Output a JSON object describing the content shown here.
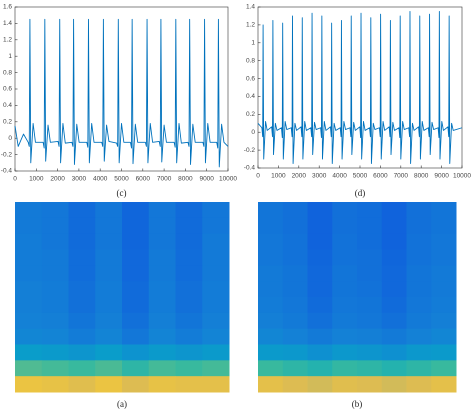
{
  "chart_data": [
    {
      "type": "line",
      "caption": "(c)",
      "color": "#0072bd",
      "xlim": [
        0,
        10000
      ],
      "ylim": [
        -0.4,
        1.6
      ],
      "xticks": [
        0,
        1000,
        2000,
        3000,
        4000,
        5000,
        6000,
        7000,
        8000,
        9000,
        10000
      ],
      "yticks": [
        -0.4,
        -0.2,
        0,
        0.2,
        0.4,
        0.6,
        0.8,
        1,
        1.2,
        1.4,
        1.6
      ],
      "x": [
        0,
        150,
        400,
        620,
        670,
        700,
        740,
        850,
        960,
        1320,
        1370,
        1400,
        1440,
        1550,
        1660,
        2020,
        2070,
        2100,
        2140,
        2250,
        2360,
        2670,
        2720,
        2750,
        2790,
        2900,
        3010,
        3370,
        3420,
        3450,
        3490,
        3600,
        3710,
        4070,
        4120,
        4150,
        4190,
        4300,
        4410,
        4770,
        4820,
        4850,
        4890,
        5000,
        5110,
        5420,
        5470,
        5500,
        5540,
        5650,
        5760,
        6120,
        6170,
        6200,
        6240,
        6350,
        6460,
        6770,
        6820,
        6850,
        6890,
        7000,
        7110,
        7470,
        7520,
        7550,
        7590,
        7700,
        7810,
        8120,
        8170,
        8200,
        8240,
        8350,
        8460,
        8820,
        8870,
        8900,
        8940,
        9050,
        9160,
        9470,
        9520,
        9550,
        9590,
        9700,
        9810,
        10000
      ],
      "values": [
        0.15,
        -0.1,
        0.05,
        -0.05,
        -0.1,
        1.45,
        -0.3,
        0.18,
        -0.05,
        -0.05,
        -0.12,
        1.45,
        -0.28,
        0.16,
        -0.05,
        -0.04,
        -0.1,
        1.45,
        -0.3,
        0.18,
        -0.06,
        -0.05,
        -0.1,
        1.45,
        -0.32,
        0.17,
        -0.05,
        -0.05,
        -0.11,
        1.45,
        -0.3,
        0.18,
        -0.05,
        -0.05,
        -0.1,
        1.45,
        -0.28,
        0.16,
        -0.04,
        -0.06,
        -0.1,
        1.45,
        -0.3,
        0.18,
        -0.05,
        -0.05,
        -0.12,
        1.45,
        -0.31,
        0.17,
        -0.05,
        -0.05,
        -0.1,
        1.45,
        -0.3,
        0.18,
        -0.05,
        -0.04,
        -0.1,
        1.45,
        -0.29,
        0.16,
        -0.05,
        -0.05,
        -0.11,
        1.45,
        -0.3,
        0.18,
        -0.06,
        -0.05,
        -0.1,
        1.45,
        -0.32,
        0.17,
        -0.05,
        -0.05,
        -0.1,
        1.45,
        -0.3,
        0.18,
        -0.05,
        -0.05,
        -0.12,
        1.45,
        -0.35,
        0.17,
        -0.05,
        -0.1
      ]
    },
    {
      "type": "line",
      "caption": "(d)",
      "color": "#0072bd",
      "xlim": [
        0,
        10000
      ],
      "ylim": [
        -0.4,
        1.4
      ],
      "xticks": [
        0,
        1000,
        2000,
        3000,
        4000,
        5000,
        6000,
        7000,
        8000,
        9000,
        10000
      ],
      "yticks": [
        -0.4,
        -0.2,
        0,
        0.2,
        0.4,
        0.6,
        0.8,
        1,
        1.2,
        1.4
      ],
      "x": [
        0,
        190,
        230,
        250,
        280,
        370,
        450,
        670,
        710,
        730,
        760,
        850,
        930,
        1150,
        1190,
        1210,
        1240,
        1330,
        1410,
        1630,
        1670,
        1690,
        1720,
        1810,
        1890,
        2110,
        2150,
        2170,
        2200,
        2290,
        2370,
        2590,
        2630,
        2650,
        2680,
        2770,
        2850,
        3070,
        3110,
        3130,
        3160,
        3250,
        3330,
        3550,
        3590,
        3610,
        3640,
        3730,
        3810,
        4030,
        4070,
        4090,
        4120,
        4210,
        4290,
        4510,
        4550,
        4570,
        4600,
        4690,
        4770,
        4990,
        5030,
        5050,
        5080,
        5170,
        5250,
        5470,
        5510,
        5530,
        5560,
        5650,
        5730,
        5950,
        5990,
        6010,
        6040,
        6130,
        6210,
        6430,
        6470,
        6490,
        6520,
        6610,
        6690,
        6910,
        6950,
        6970,
        7000,
        7090,
        7170,
        7390,
        7430,
        7450,
        7480,
        7570,
        7650,
        7870,
        7910,
        7930,
        7960,
        8050,
        8130,
        8350,
        8390,
        8410,
        8440,
        8530,
        8610,
        8830,
        8870,
        8890,
        8920,
        9010,
        9090,
        9310,
        9350,
        9370,
        9400,
        9490,
        9570,
        10000
      ],
      "values": [
        0.1,
        0.05,
        -0.05,
        1.2,
        -0.3,
        0.12,
        0.02,
        0.06,
        -0.05,
        1.25,
        -0.25,
        0.1,
        0.02,
        0.05,
        -0.06,
        1.22,
        -0.3,
        0.12,
        0.03,
        0.05,
        -0.05,
        1.3,
        -0.35,
        0.1,
        0.02,
        0.06,
        -0.05,
        1.28,
        -0.3,
        0.12,
        0.02,
        0.05,
        -0.05,
        1.33,
        -0.25,
        0.11,
        0.03,
        0.05,
        -0.06,
        1.3,
        -0.3,
        0.12,
        0.02,
        0.06,
        -0.05,
        1.22,
        -0.35,
        0.1,
        0.02,
        0.05,
        -0.05,
        1.25,
        -0.3,
        0.12,
        0.03,
        0.05,
        -0.05,
        1.3,
        -0.25,
        0.11,
        0.02,
        0.06,
        -0.06,
        1.33,
        -0.3,
        0.12,
        0.02,
        0.05,
        -0.05,
        1.28,
        -0.35,
        0.1,
        0.03,
        0.05,
        -0.05,
        1.32,
        -0.3,
        0.12,
        0.02,
        0.06,
        -0.05,
        1.25,
        -0.25,
        0.11,
        0.02,
        0.05,
        -0.06,
        1.3,
        -0.3,
        0.12,
        0.03,
        0.05,
        -0.05,
        1.35,
        -0.35,
        0.1,
        0.02,
        0.06,
        -0.05,
        1.3,
        -0.3,
        0.12,
        0.02,
        0.05,
        -0.05,
        1.32,
        -0.25,
        0.11,
        0.03,
        0.05,
        -0.06,
        1.35,
        -0.3,
        0.12,
        0.02,
        0.06,
        -0.05,
        1.3,
        -0.35,
        0.1,
        0.02,
        0.05
      ]
    },
    {
      "type": "heatmap",
      "caption": "(a)",
      "colormap": "parula",
      "values": [
        [
          0.32,
          0.31,
          0.26,
          0.31,
          0.24,
          0.31,
          0.26,
          0.31
        ],
        [
          0.32,
          0.31,
          0.26,
          0.31,
          0.24,
          0.31,
          0.26,
          0.31
        ],
        [
          0.33,
          0.31,
          0.26,
          0.31,
          0.24,
          0.31,
          0.26,
          0.32
        ],
        [
          0.33,
          0.32,
          0.27,
          0.32,
          0.25,
          0.32,
          0.27,
          0.32
        ],
        [
          0.33,
          0.32,
          0.27,
          0.32,
          0.25,
          0.32,
          0.27,
          0.32
        ],
        [
          0.34,
          0.33,
          0.28,
          0.33,
          0.26,
          0.33,
          0.28,
          0.33
        ],
        [
          0.34,
          0.33,
          0.28,
          0.33,
          0.26,
          0.33,
          0.28,
          0.33
        ],
        [
          0.35,
          0.34,
          0.3,
          0.34,
          0.28,
          0.34,
          0.3,
          0.34
        ],
        [
          0.37,
          0.36,
          0.33,
          0.36,
          0.31,
          0.36,
          0.33,
          0.36
        ],
        [
          0.46,
          0.45,
          0.43,
          0.46,
          0.42,
          0.45,
          0.43,
          0.45
        ],
        [
          0.64,
          0.62,
          0.6,
          0.63,
          0.58,
          0.62,
          0.6,
          0.62
        ],
        [
          0.9,
          0.89,
          0.87,
          0.9,
          0.86,
          0.89,
          0.88,
          0.88
        ]
      ]
    },
    {
      "type": "heatmap",
      "caption": "(b)",
      "colormap": "parula",
      "values": [
        [
          0.3,
          0.28,
          0.23,
          0.28,
          0.27,
          0.23,
          0.28,
          0.3
        ],
        [
          0.3,
          0.28,
          0.23,
          0.28,
          0.27,
          0.23,
          0.28,
          0.3
        ],
        [
          0.31,
          0.29,
          0.23,
          0.29,
          0.27,
          0.23,
          0.29,
          0.31
        ],
        [
          0.31,
          0.29,
          0.24,
          0.29,
          0.28,
          0.24,
          0.29,
          0.31
        ],
        [
          0.32,
          0.3,
          0.25,
          0.3,
          0.28,
          0.25,
          0.3,
          0.32
        ],
        [
          0.32,
          0.3,
          0.25,
          0.3,
          0.29,
          0.25,
          0.3,
          0.32
        ],
        [
          0.33,
          0.31,
          0.26,
          0.31,
          0.3,
          0.26,
          0.31,
          0.33
        ],
        [
          0.34,
          0.32,
          0.28,
          0.32,
          0.31,
          0.28,
          0.32,
          0.34
        ],
        [
          0.37,
          0.35,
          0.32,
          0.35,
          0.34,
          0.32,
          0.35,
          0.37
        ],
        [
          0.45,
          0.44,
          0.41,
          0.44,
          0.43,
          0.41,
          0.44,
          0.45
        ],
        [
          0.6,
          0.58,
          0.56,
          0.59,
          0.58,
          0.56,
          0.58,
          0.6
        ],
        [
          0.88,
          0.86,
          0.84,
          0.87,
          0.86,
          0.84,
          0.86,
          0.88
        ]
      ]
    }
  ]
}
